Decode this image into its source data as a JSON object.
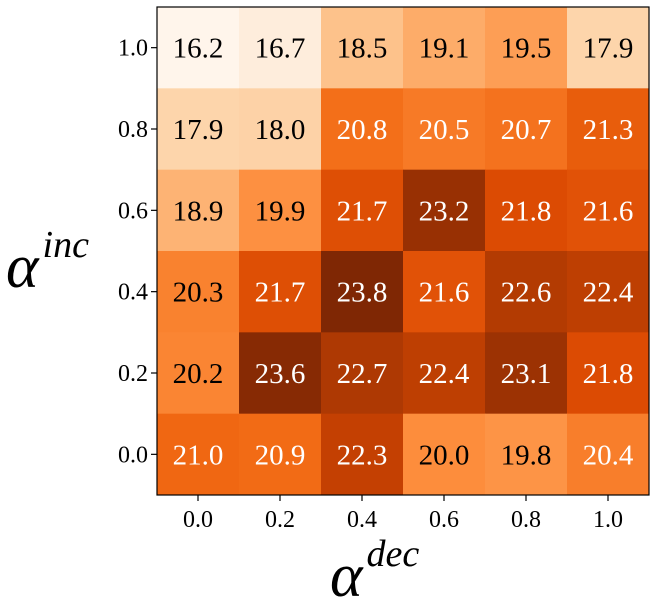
{
  "chart_data": {
    "type": "heatmap",
    "title": "",
    "xlabel": "α",
    "xlabel_superscript": "dec",
    "ylabel": "α",
    "ylabel_superscript": "inc",
    "x_ticks": [
      "0.0",
      "0.2",
      "0.4",
      "0.6",
      "0.8",
      "1.0"
    ],
    "y_ticks": [
      "1.0",
      "0.8",
      "0.6",
      "0.4",
      "0.2",
      "0.0"
    ],
    "values": [
      [
        16.2,
        16.7,
        18.5,
        19.1,
        19.5,
        17.9
      ],
      [
        17.9,
        18.0,
        20.8,
        20.5,
        20.7,
        21.3
      ],
      [
        18.9,
        19.9,
        21.7,
        23.2,
        21.8,
        21.6
      ],
      [
        20.3,
        21.7,
        23.8,
        21.6,
        22.6,
        22.4
      ],
      [
        20.2,
        23.6,
        22.7,
        22.4,
        23.1,
        21.8
      ],
      [
        21.0,
        20.9,
        22.3,
        20.0,
        19.8,
        20.4
      ]
    ],
    "value_labels": [
      [
        "16.2",
        "16.7",
        "18.5",
        "19.1",
        "19.5",
        "17.9"
      ],
      [
        "17.9",
        "18.0",
        "20.8",
        "20.5",
        "20.7",
        "21.3"
      ],
      [
        "18.9",
        "19.9",
        "21.7",
        "23.2",
        "21.8",
        "21.6"
      ],
      [
        "20.3",
        "21.7",
        "23.8",
        "21.6",
        "22.6",
        "22.4"
      ],
      [
        "20.2",
        "23.6",
        "22.7",
        "22.4",
        "23.1",
        "21.8"
      ],
      [
        "21.0",
        "20.9",
        "22.3",
        "20.0",
        "19.8",
        "20.4"
      ]
    ],
    "colormap": "Oranges",
    "vmin": 16.2,
    "vmax": 23.8,
    "colorbar": false,
    "grid": false
  }
}
